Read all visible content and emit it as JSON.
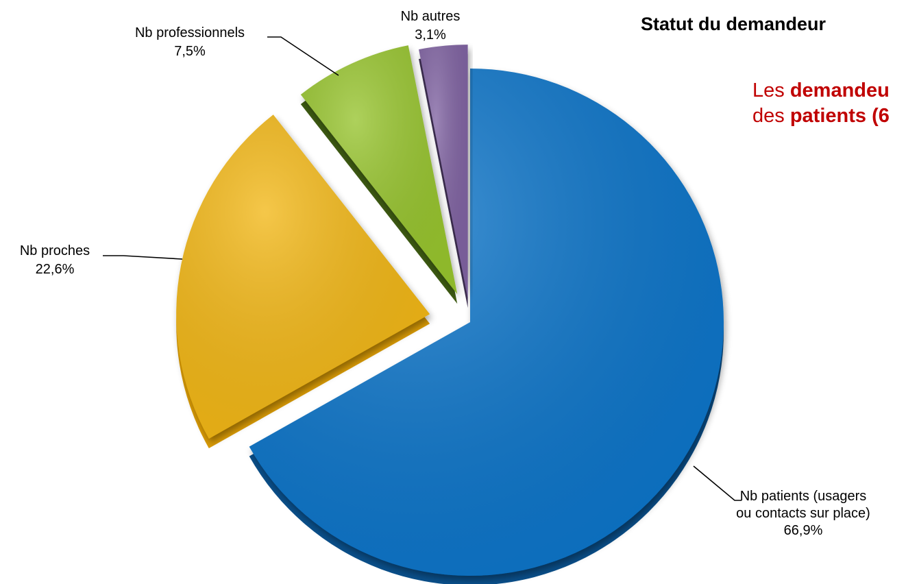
{
  "chart_data": {
    "type": "pie",
    "title": "Statut du demandeur",
    "slices": [
      {
        "key": "patients",
        "label_lines": [
          "Nb patients (usagers",
          "ou contacts sur place)"
        ],
        "value_label": "66,9%",
        "value": 66.9,
        "color": "#0a74c9",
        "side_color": "#0a4f8a"
      },
      {
        "key": "proches",
        "label_lines": [
          "Nb proches"
        ],
        "value_label": "22,6%",
        "value": 22.6,
        "color": "#f2b712",
        "side_color": "#d89a06"
      },
      {
        "key": "professionnels",
        "label_lines": [
          "Nb professionnels"
        ],
        "value_label": "7,5%",
        "value": 7.5,
        "color": "#97c42e",
        "side_color": "#3d5a12"
      },
      {
        "key": "autres",
        "label_lines": [
          "Nb autres"
        ],
        "value_label": "3,1%",
        "value": 3.1,
        "color": "#8064a2",
        "side_color": "#3e2f52"
      }
    ]
  },
  "annotation": {
    "line1_prefix": "Les ",
    "line1_bold": "demandeu",
    "line2_prefix": "des ",
    "line2_bold": "patients (6"
  }
}
